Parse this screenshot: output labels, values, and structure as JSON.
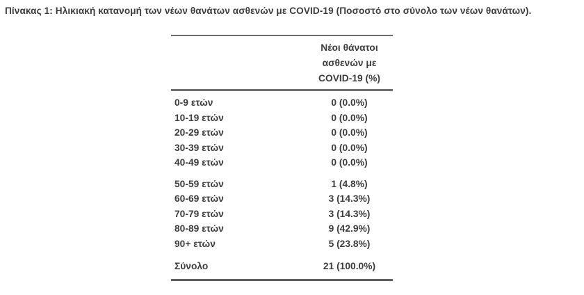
{
  "title": "Πίνακας 1: Ηλικιακή κατανομή των νέων θανάτων ασθενών με COVID-19 (Ποσοστό στο σύνολο των νέων θανάτων).",
  "table": {
    "header": {
      "lines": [
        "Νέοι θάνατοι",
        "ασθενών με",
        "COVID-19 (%)"
      ]
    },
    "groups": [
      {
        "rows": [
          {
            "label": "0-9 ετών",
            "value": "0 (0.0%)"
          },
          {
            "label": "10-19 ετών",
            "value": "0 (0.0%)"
          },
          {
            "label": "20-29 ετών",
            "value": "0 (0.0%)"
          },
          {
            "label": "30-39 ετών",
            "value": "0 (0.0%)"
          },
          {
            "label": "40-49 ετών",
            "value": "0 (0.0%)"
          }
        ]
      },
      {
        "rows": [
          {
            "label": "50-59 ετών",
            "value": "1 (4.8%)"
          },
          {
            "label": "60-69 ετών",
            "value": "3 (14.3%)"
          },
          {
            "label": "70-79 ετών",
            "value": "3 (14.3%)"
          },
          {
            "label": "80-89 ετών",
            "value": "9 (42.9%)"
          },
          {
            "label": "90+ ετών",
            "value": "5 (23.8%)"
          }
        ]
      }
    ],
    "total": {
      "label": "Σύνολο",
      "value": "21 (100.0%)"
    }
  },
  "colors": {
    "text": "#3c3c3c",
    "rule": "#6e6e6e",
    "background": "#ffffff"
  }
}
